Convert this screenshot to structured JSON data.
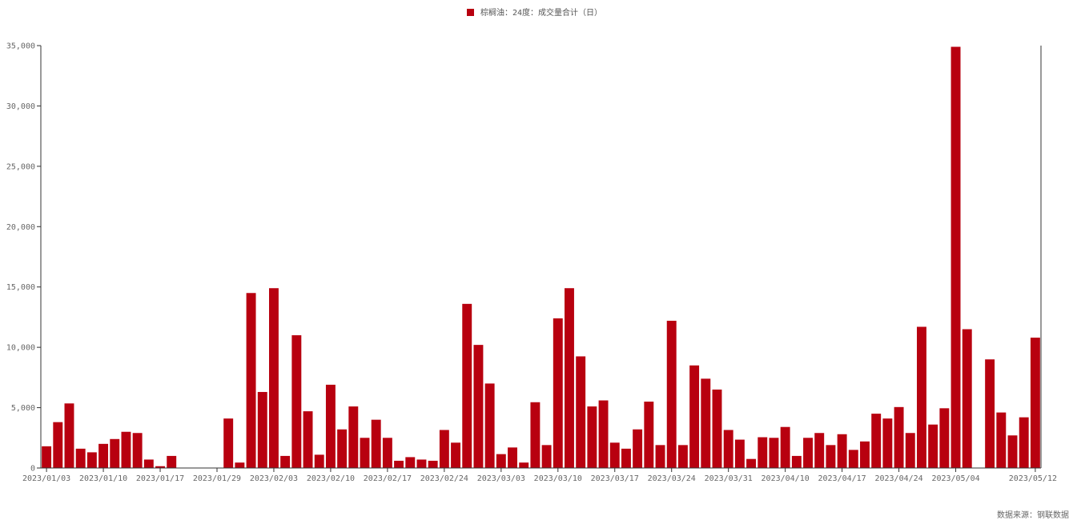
{
  "source": "数据来源：钢联数据",
  "colors": {
    "bar": "#b8000f",
    "axis": "#333333",
    "tick_text": "#666666"
  },
  "chart_data": {
    "type": "bar",
    "title": "",
    "xlabel": "",
    "ylabel": "",
    "ylim": [
      0,
      35000
    ],
    "yticks": [
      "0",
      "5,000",
      "10,000",
      "15,000",
      "20,000",
      "25,000",
      "30,000",
      "35,000"
    ],
    "grid": false,
    "legend_position": "top-center",
    "x_tick_labels": [
      "2023/01/03",
      "2023/01/10",
      "2023/01/17",
      "2023/01/29",
      "2023/02/03",
      "2023/02/10",
      "2023/02/17",
      "2023/02/24",
      "2023/03/03",
      "2023/03/10",
      "2023/03/17",
      "2023/03/24",
      "2023/03/31",
      "2023/04/10",
      "2023/04/17",
      "2023/04/24",
      "2023/05/04",
      "2023/05/12"
    ],
    "series": [
      {
        "name": "棕榈油：24度：成交量合计（日）",
        "values": [
          1800,
          3800,
          5350,
          1600,
          1300,
          2000,
          2400,
          3000,
          2900,
          700,
          150,
          1000,
          0,
          0,
          0,
          0,
          4100,
          450,
          14500,
          6300,
          14900,
          1000,
          11000,
          4700,
          1100,
          6900,
          3200,
          5100,
          2500,
          4000,
          2500,
          600,
          900,
          700,
          600,
          3150,
          2100,
          13600,
          10200,
          7000,
          1150,
          1700,
          450,
          5450,
          1900,
          12400,
          14900,
          9250,
          5100,
          5600,
          2100,
          1600,
          3200,
          5500,
          1900,
          12200,
          1900,
          8500,
          7400,
          6500,
          3150,
          2350,
          750,
          2550,
          2500,
          3400,
          1000,
          2500,
          2900,
          1900,
          2800,
          1500,
          2200,
          4500,
          4100,
          5050,
          2900,
          11700,
          3600,
          4950,
          34900,
          11500,
          0,
          9000,
          4600,
          2700,
          4200,
          10800
        ]
      }
    ]
  }
}
